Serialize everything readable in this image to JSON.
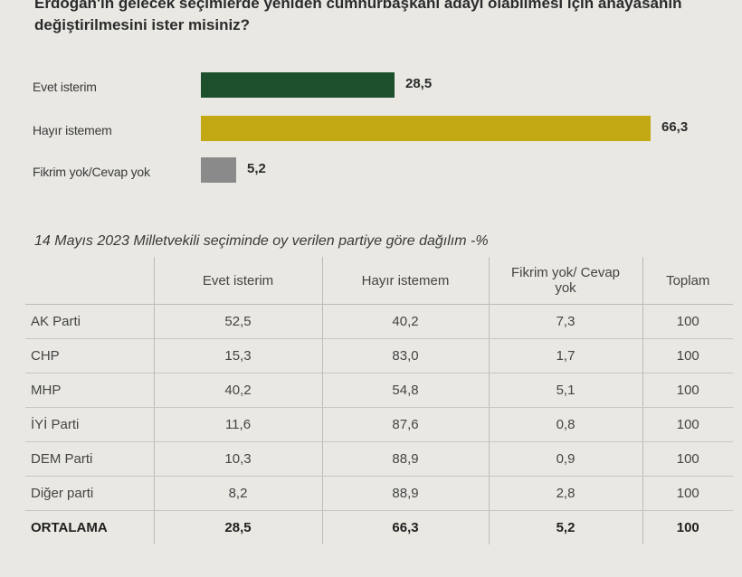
{
  "question": "Erdoğan'ın gelecek seçimlerde yeniden cumhurbaşkanı adayı olabilmesi için anayasanın değiştirilmesini ister misiniz?",
  "chart_data": [
    {
      "type": "bar",
      "orientation": "horizontal",
      "categories": [
        "Evet isterim",
        "Hayır istemem",
        "Fikrim yok/Cevap yok"
      ],
      "values": [
        28.5,
        66.3,
        5.2
      ],
      "value_labels": [
        "28,5",
        "66,3",
        "5,2"
      ],
      "colors": [
        "#1c4f2c",
        "#c2a914",
        "#8a8a8a"
      ],
      "xlim": [
        0,
        66.3
      ]
    },
    {
      "type": "table",
      "title": "14 Mayıs 2023 Milletvekili seçiminde oy verilen partiye göre dağılım -%",
      "columns": [
        "",
        "Evet isterim",
        "Hayır istemem",
        "Fikrim yok/ Cevap yok",
        "Toplam"
      ],
      "rows": [
        [
          "AK Parti",
          "52,5",
          "40,2",
          "7,3",
          "100"
        ],
        [
          "CHP",
          "15,3",
          "83,0",
          "1,7",
          "100"
        ],
        [
          "MHP",
          "40,2",
          "54,8",
          "5,1",
          "100"
        ],
        [
          "İYİ Parti",
          "11,6",
          "87,6",
          "0,8",
          "100"
        ],
        [
          "DEM Parti",
          "10,3",
          "88,9",
          "0,9",
          "100"
        ],
        [
          "Diğer parti",
          "8,2",
          "88,9",
          "2,8",
          "100"
        ],
        [
          "ORTALAMA",
          "28,5",
          "66,3",
          "5,2",
          "100"
        ]
      ]
    }
  ]
}
